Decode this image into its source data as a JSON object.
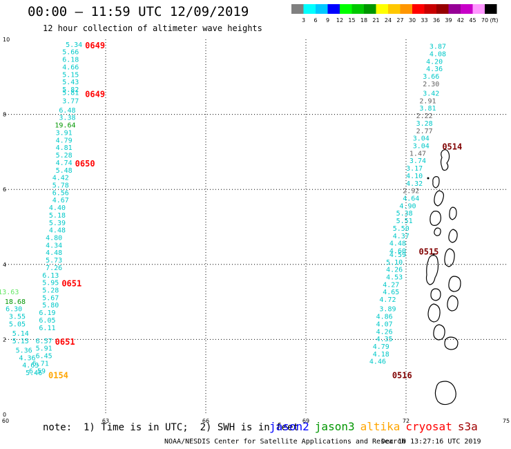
{
  "header": {
    "title": "00:00 – 11:59 UTC 12/09/2019",
    "subtitle": "12 hour collection of altimeter wave heights"
  },
  "colorbar": {
    "ticks": [
      "3",
      "6",
      "9",
      "12",
      "15",
      "18",
      "21",
      "24",
      "27",
      "30",
      "33",
      "36",
      "39",
      "42",
      "45",
      "70"
    ],
    "unit": "(ft)",
    "colors": [
      "#808080",
      "#00ffff",
      "#00c8ff",
      "#0000ff",
      "#00ff00",
      "#00c800",
      "#009600",
      "#ffff00",
      "#ffc800",
      "#ff9600",
      "#ff0000",
      "#c80000",
      "#960000",
      "#960096",
      "#c800c8",
      "#ff96ff",
      "#000000"
    ]
  },
  "note": "note:  1) Time is in UTC;  2) SWH is in feet",
  "legend": [
    {
      "name": "jason2",
      "color": "#0000ff"
    },
    {
      "name": "jason3",
      "color": "#009600"
    },
    {
      "name": "altika",
      "color": "#ffa500"
    },
    {
      "name": "cryosat",
      "color": "#ff0000"
    },
    {
      "name": "s3a",
      "color": "#a00000"
    }
  ],
  "footer": {
    "credit": "NOAA/NESDIS Center for Satellite Applications and Research",
    "generated": "Dec 10 13:27:16 UTC 2019"
  },
  "chart_data": {
    "type": "scatter",
    "xlim": [
      60,
      75
    ],
    "ylim": [
      0,
      10
    ],
    "xticks": [
      "60",
      "63",
      "66",
      "69",
      "72",
      "75"
    ],
    "yticks": [
      "0",
      "2",
      "4",
      "6",
      "8",
      "10"
    ],
    "grid": true,
    "points": [
      {
        "x": 62.3,
        "y": 9.8,
        "label": "5.34",
        "color": "#00c8c8"
      },
      {
        "x": 62.2,
        "y": 9.6,
        "label": "5.66",
        "color": "#00c8c8"
      },
      {
        "x": 62.2,
        "y": 9.4,
        "label": "6.18",
        "color": "#00c8c8"
      },
      {
        "x": 62.2,
        "y": 9.2,
        "label": "4.66",
        "color": "#00c8c8"
      },
      {
        "x": 62.2,
        "y": 9.0,
        "label": "5.15",
        "color": "#00c8c8"
      },
      {
        "x": 62.2,
        "y": 8.8,
        "label": "5.43",
        "color": "#00c8c8"
      },
      {
        "x": 62.2,
        "y": 8.6,
        "label": "5.82",
        "color": "#00c8c8"
      },
      {
        "x": 62.2,
        "y": 8.52,
        "label": "5.81",
        "color": "#00c8c8"
      },
      {
        "x": 62.2,
        "y": 8.3,
        "label": "3.77",
        "color": "#00c8c8"
      },
      {
        "x": 62.1,
        "y": 8.05,
        "label": "6.48",
        "color": "#00c8c8"
      },
      {
        "x": 62.1,
        "y": 7.85,
        "label": "3.38",
        "color": "#00c8c8"
      },
      {
        "x": 62.1,
        "y": 7.65,
        "label": "19.64",
        "color": "#009600"
      },
      {
        "x": 62.0,
        "y": 7.45,
        "label": "3.91",
        "color": "#00c8c8"
      },
      {
        "x": 62.0,
        "y": 7.25,
        "label": "4.79",
        "color": "#00c8c8"
      },
      {
        "x": 62.0,
        "y": 7.05,
        "label": "4.81",
        "color": "#00c8c8"
      },
      {
        "x": 62.0,
        "y": 6.85,
        "label": "5.28",
        "color": "#00c8c8"
      },
      {
        "x": 62.0,
        "y": 6.65,
        "label": "4.74",
        "color": "#00c8c8"
      },
      {
        "x": 62.0,
        "y": 6.45,
        "label": "5.48",
        "color": "#00c8c8"
      },
      {
        "x": 61.9,
        "y": 6.25,
        "label": "4.42",
        "color": "#00c8c8"
      },
      {
        "x": 61.9,
        "y": 6.05,
        "label": "5.78",
        "color": "#00c8c8"
      },
      {
        "x": 61.9,
        "y": 5.85,
        "label": "6.56",
        "color": "#00c8c8"
      },
      {
        "x": 61.9,
        "y": 5.65,
        "label": "4.67",
        "color": "#00c8c8"
      },
      {
        "x": 61.8,
        "y": 5.45,
        "label": "4.40",
        "color": "#00c8c8"
      },
      {
        "x": 61.8,
        "y": 5.25,
        "label": "5.18",
        "color": "#00c8c8"
      },
      {
        "x": 61.8,
        "y": 5.05,
        "label": "5.39",
        "color": "#00c8c8"
      },
      {
        "x": 61.8,
        "y": 4.85,
        "label": "4.48",
        "color": "#00c8c8"
      },
      {
        "x": 61.7,
        "y": 4.65,
        "label": "4.80",
        "color": "#00c8c8"
      },
      {
        "x": 61.7,
        "y": 4.45,
        "label": "4.34",
        "color": "#00c8c8"
      },
      {
        "x": 61.7,
        "y": 4.25,
        "label": "4.48",
        "color": "#00c8c8"
      },
      {
        "x": 61.7,
        "y": 4.05,
        "label": "5.73",
        "color": "#00c8c8"
      },
      {
        "x": 61.7,
        "y": 3.85,
        "label": "7.26",
        "color": "#00c8c8"
      },
      {
        "x": 61.6,
        "y": 3.65,
        "label": "6.13",
        "color": "#00c8c8"
      },
      {
        "x": 61.6,
        "y": 3.45,
        "label": "5.95",
        "color": "#00c8c8"
      },
      {
        "x": 61.6,
        "y": 3.25,
        "label": "5.28",
        "color": "#00c8c8"
      },
      {
        "x": 61.6,
        "y": 3.05,
        "label": "5.67",
        "color": "#00c8c8"
      },
      {
        "x": 61.6,
        "y": 2.85,
        "label": "5.80",
        "color": "#00c8c8"
      },
      {
        "x": 61.5,
        "y": 2.65,
        "label": "6.19",
        "color": "#00c8c8"
      },
      {
        "x": 61.5,
        "y": 2.45,
        "label": "6.05",
        "color": "#00c8c8"
      },
      {
        "x": 61.5,
        "y": 2.25,
        "label": "6.11",
        "color": "#00c8c8"
      },
      {
        "x": 61.4,
        "y": 1.9,
        "label": "6.57",
        "color": "#00c8c8"
      },
      {
        "x": 61.4,
        "y": 1.7,
        "label": "5.91",
        "color": "#00c8c8"
      },
      {
        "x": 61.4,
        "y": 1.5,
        "label": "6.45",
        "color": "#00c8c8"
      },
      {
        "x": 61.3,
        "y": 1.3,
        "label": "6.71",
        "color": "#00c8c8"
      },
      {
        "x": 61.2,
        "y": 1.1,
        "label": "6.59",
        "color": "#00c8c8"
      },
      {
        "x": 60.4,
        "y": 3.2,
        "label": "13.63",
        "color": "#64e664"
      },
      {
        "x": 60.6,
        "y": 2.95,
        "label": "18.68",
        "color": "#009600"
      },
      {
        "x": 60.5,
        "y": 2.75,
        "label": "6.30",
        "color": "#00c8c8"
      },
      {
        "x": 60.6,
        "y": 2.55,
        "label": "3.55",
        "color": "#00c8c8"
      },
      {
        "x": 60.6,
        "y": 2.35,
        "label": "5.05",
        "color": "#00c8c8"
      },
      {
        "x": 60.7,
        "y": 2.1,
        "label": "5.14",
        "color": "#00c8c8"
      },
      {
        "x": 60.7,
        "y": 1.9,
        "label": "5.15",
        "color": "#00c8c8"
      },
      {
        "x": 60.8,
        "y": 1.65,
        "label": "5.36",
        "color": "#00c8c8"
      },
      {
        "x": 60.9,
        "y": 1.45,
        "label": "4.36",
        "color": "#00c8c8"
      },
      {
        "x": 61.0,
        "y": 1.25,
        "label": "4.63",
        "color": "#00c8c8"
      },
      {
        "x": 61.1,
        "y": 1.05,
        "label": "5.46",
        "color": "#00c8c8"
      },
      {
        "x": 73.2,
        "y": 9.75,
        "label": "3.87",
        "color": "#00c8c8"
      },
      {
        "x": 73.2,
        "y": 9.55,
        "label": "4.08",
        "color": "#00c8c8"
      },
      {
        "x": 73.1,
        "y": 9.35,
        "label": "4.20",
        "color": "#00c8c8"
      },
      {
        "x": 73.1,
        "y": 9.15,
        "label": "4.36",
        "color": "#00c8c8"
      },
      {
        "x": 73.0,
        "y": 8.95,
        "label": "3.66",
        "color": "#00c8c8"
      },
      {
        "x": 73.0,
        "y": 8.75,
        "label": "2.30",
        "color": "#606060"
      },
      {
        "x": 73.0,
        "y": 8.5,
        "label": "3.42",
        "color": "#00c8c8"
      },
      {
        "x": 72.9,
        "y": 8.3,
        "label": "2.91",
        "color": "#606060"
      },
      {
        "x": 72.9,
        "y": 8.1,
        "label": "3.81",
        "color": "#00c8c8"
      },
      {
        "x": 72.8,
        "y": 7.9,
        "label": "2.22",
        "color": "#606060"
      },
      {
        "x": 72.8,
        "y": 7.7,
        "label": "3.28",
        "color": "#00c8c8"
      },
      {
        "x": 72.8,
        "y": 7.5,
        "label": "2.77",
        "color": "#606060"
      },
      {
        "x": 72.7,
        "y": 7.3,
        "label": "3.04",
        "color": "#00c8c8"
      },
      {
        "x": 72.7,
        "y": 7.1,
        "label": "3.04",
        "color": "#00c8c8"
      },
      {
        "x": 72.6,
        "y": 6.9,
        "label": "1.47",
        "color": "#606060"
      },
      {
        "x": 72.6,
        "y": 6.7,
        "label": "3.74",
        "color": "#00c8c8"
      },
      {
        "x": 72.5,
        "y": 6.5,
        "label": "3.17",
        "color": "#00c8c8"
      },
      {
        "x": 72.5,
        "y": 6.3,
        "label": "4.10",
        "color": "#00c8c8"
      },
      {
        "x": 72.5,
        "y": 6.1,
        "label": "4.32",
        "color": "#00c8c8"
      },
      {
        "x": 72.4,
        "y": 5.9,
        "label": "2.92",
        "color": "#606060"
      },
      {
        "x": 72.4,
        "y": 5.7,
        "label": "4.64",
        "color": "#00c8c8"
      },
      {
        "x": 72.3,
        "y": 5.5,
        "label": "4.90",
        "color": "#00c8c8"
      },
      {
        "x": 72.2,
        "y": 5.3,
        "label": "5.38",
        "color": "#00c8c8"
      },
      {
        "x": 72.2,
        "y": 5.1,
        "label": "5.51",
        "color": "#00c8c8"
      },
      {
        "x": 72.1,
        "y": 4.9,
        "label": "5.50",
        "color": "#00c8c8"
      },
      {
        "x": 72.1,
        "y": 4.7,
        "label": "4.37",
        "color": "#00c8c8"
      },
      {
        "x": 72.0,
        "y": 4.5,
        "label": "4.48",
        "color": "#00c8c8"
      },
      {
        "x": 72.0,
        "y": 4.3,
        "label": "4.60",
        "color": "#00c8c8"
      },
      {
        "x": 72.0,
        "y": 4.2,
        "label": "4.59",
        "color": "#00c8c8"
      },
      {
        "x": 71.9,
        "y": 4.0,
        "label": "5.10",
        "color": "#00c8c8"
      },
      {
        "x": 71.9,
        "y": 3.8,
        "label": "4.26",
        "color": "#00c8c8"
      },
      {
        "x": 71.9,
        "y": 3.6,
        "label": "4.53",
        "color": "#00c8c8"
      },
      {
        "x": 71.8,
        "y": 3.4,
        "label": "4.27",
        "color": "#00c8c8"
      },
      {
        "x": 71.8,
        "y": 3.2,
        "label": "4.65",
        "color": "#00c8c8"
      },
      {
        "x": 71.7,
        "y": 3.0,
        "label": "4.72",
        "color": "#00c8c8"
      },
      {
        "x": 71.7,
        "y": 2.75,
        "label": "3.89",
        "color": "#00c8c8"
      },
      {
        "x": 71.6,
        "y": 2.55,
        "label": "4.86",
        "color": "#00c8c8"
      },
      {
        "x": 71.6,
        "y": 2.35,
        "label": "4.07",
        "color": "#00c8c8"
      },
      {
        "x": 71.6,
        "y": 2.15,
        "label": "4.26",
        "color": "#00c8c8"
      },
      {
        "x": 71.6,
        "y": 1.95,
        "label": "4.35",
        "color": "#00c8c8"
      },
      {
        "x": 71.5,
        "y": 1.75,
        "label": "4.79",
        "color": "#00c8c8"
      },
      {
        "x": 71.5,
        "y": 1.55,
        "label": "4.18",
        "color": "#00c8c8"
      },
      {
        "x": 71.4,
        "y": 1.35,
        "label": "4.46",
        "color": "#00c8c8"
      }
    ],
    "pass_labels": [
      {
        "x": 62.3,
        "y": 9.8,
        "label": "0649",
        "color": "#ff0000"
      },
      {
        "x": 62.3,
        "y": 8.5,
        "label": "0649",
        "color": "#ff0000"
      },
      {
        "x": 62.0,
        "y": 6.65,
        "label": "0650",
        "color": "#ff0000"
      },
      {
        "x": 61.6,
        "y": 3.45,
        "label": "0651",
        "color": "#ff0000"
      },
      {
        "x": 61.4,
        "y": 1.9,
        "label": "0651",
        "color": "#ff0000"
      },
      {
        "x": 61.2,
        "y": 1.0,
        "label": "0154",
        "color": "#ffa500"
      },
      {
        "x": 73.0,
        "y": 7.1,
        "label": "0514",
        "color": "#800000"
      },
      {
        "x": 72.3,
        "y": 4.3,
        "label": "0515",
        "color": "#800000"
      },
      {
        "x": 71.5,
        "y": 1.0,
        "label": "0516",
        "color": "#800000"
      }
    ]
  }
}
